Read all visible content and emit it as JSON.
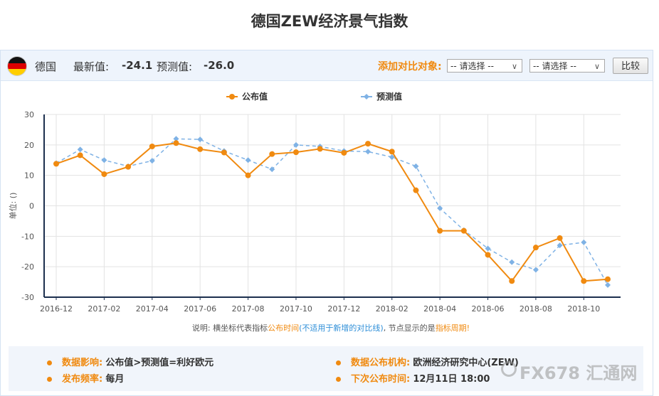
{
  "page_title": "德国ZEW经济景气指数",
  "info_bar": {
    "country": "德国",
    "latest_label": "最新值:",
    "latest_value": "-24.1",
    "forecast_label": "预测值:",
    "forecast_value": "-26.0",
    "compare_label": "添加对比对象:",
    "select1": "-- 请选择 --",
    "select2": "-- 请选择 --",
    "compare_button": "比较"
  },
  "colors": {
    "published": "#f08a10",
    "forecast": "#7fb2e5",
    "accent_orange": "#f08a10",
    "axis": "#1c2f4e"
  },
  "chart_data": {
    "type": "line",
    "ylabel": "单位: ()",
    "ylim": [
      -30,
      30
    ],
    "yticks": [
      30,
      20,
      10,
      0,
      -10,
      -20,
      -30
    ],
    "grid": true,
    "legend_position": "top-center",
    "x": [
      "2016-12",
      "2017-01",
      "2017-02",
      "2017-03",
      "2017-04",
      "2017-05",
      "2017-06",
      "2017-07",
      "2017-08",
      "2017-09",
      "2017-10",
      "2017-11",
      "2017-12",
      "2018-01",
      "2018-02",
      "2018-03",
      "2018-04",
      "2018-05",
      "2018-06",
      "2018-07",
      "2018-08",
      "2018-09",
      "2018-10",
      "2018-11"
    ],
    "xtick_labels": [
      "2016-12",
      "2017-02",
      "2017-04",
      "2017-06",
      "2017-08",
      "2017-10",
      "2017-12",
      "2018-02",
      "2018-04",
      "2018-06",
      "2018-08",
      "2018-10"
    ],
    "series": [
      {
        "name": "公布值",
        "values": [
          13.8,
          16.6,
          10.4,
          12.8,
          19.5,
          20.6,
          18.6,
          17.5,
          10.0,
          17.0,
          17.6,
          18.7,
          17.4,
          20.4,
          17.8,
          5.1,
          -8.2,
          -8.2,
          -16.1,
          -24.7,
          -13.7,
          -10.6,
          -24.7,
          -24.1
        ]
      },
      {
        "name": "预测值",
        "values": [
          14.0,
          18.5,
          15.0,
          13.0,
          14.8,
          22.0,
          21.8,
          18.0,
          15.0,
          12.0,
          20.0,
          19.5,
          18.0,
          17.8,
          16.0,
          13.0,
          -0.8,
          -8.0,
          -14.0,
          -18.5,
          -21.0,
          -13.0,
          -12.0,
          -26.0
        ]
      }
    ],
    "note": {
      "part1": "说明: 横坐标代表指标",
      "part2": "公布时间",
      "part3": "(不适用于新增的对比线)",
      "part4": ", 节点显示的是",
      "part5": "指标周期!"
    }
  },
  "footer": {
    "impact_label": "数据影响:",
    "impact_value": "公布值>预测值=利好欧元",
    "frequency_label": "发布频率:",
    "frequency_value": "每月",
    "institution_label": "数据公布机构:",
    "institution_value": "欧洲经济研究中心(ZEW)",
    "next_release_label": "下次公布时间:",
    "next_release_value": "12月11日 18:00"
  },
  "watermark": "FX678 汇通网"
}
